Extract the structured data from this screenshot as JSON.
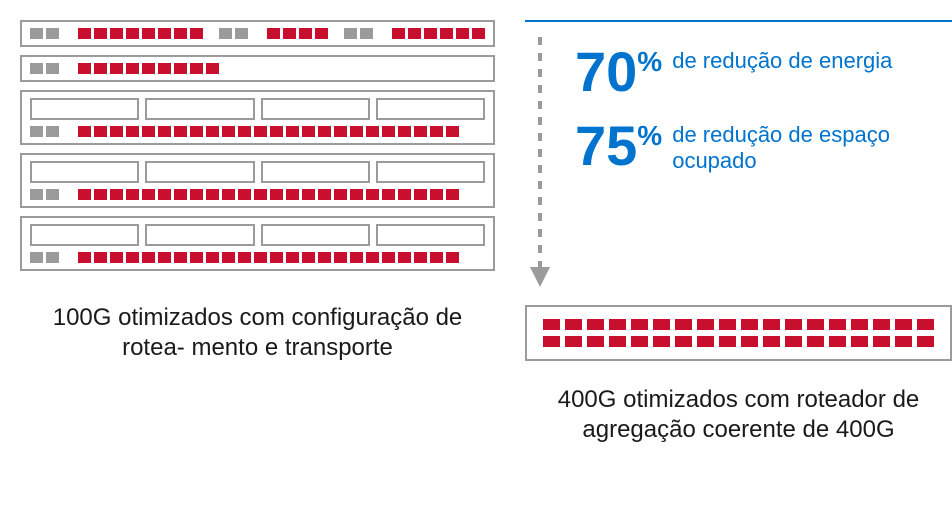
{
  "colors": {
    "blue": "#0073cf",
    "red": "#c8102e",
    "grey": "#9b9b9b",
    "text": "#1a1a1a",
    "bg": "#ffffff"
  },
  "left": {
    "caption": "100G otimizados com configuração de rotea-\nmento e transporte",
    "chassis": [
      {
        "rows": [
          [
            "g",
            "g",
            "e",
            "r",
            "r",
            "r",
            "r",
            "r",
            "r",
            "r",
            "r",
            "gap",
            "g",
            "g",
            "e",
            "r",
            "r",
            "r",
            "r",
            "gap",
            "g",
            "g",
            "e",
            "r",
            "r",
            "r",
            "r",
            "r",
            "r"
          ]
        ]
      },
      {
        "rows": [
          [
            "g",
            "g",
            "e",
            "r",
            "r",
            "r",
            "r",
            "r",
            "r",
            "r",
            "r",
            "r"
          ]
        ]
      },
      {
        "slots": 4,
        "rows": [
          [
            "g",
            "g",
            "e",
            "r",
            "r",
            "r",
            "r",
            "r",
            "r",
            "r",
            "r",
            "r",
            "r",
            "r",
            "r",
            "r",
            "r",
            "r",
            "r",
            "r",
            "r",
            "r",
            "r",
            "r",
            "r",
            "r",
            "r"
          ]
        ]
      },
      {
        "slots": 4,
        "rows": [
          [
            "g",
            "g",
            "e",
            "r",
            "r",
            "r",
            "r",
            "r",
            "r",
            "r",
            "r",
            "r",
            "r",
            "r",
            "r",
            "r",
            "r",
            "r",
            "r",
            "r",
            "r",
            "r",
            "r",
            "r",
            "r",
            "r",
            "r"
          ]
        ]
      },
      {
        "slots": 4,
        "rows": [
          [
            "g",
            "g",
            "e",
            "r",
            "r",
            "r",
            "r",
            "r",
            "r",
            "r",
            "r",
            "r",
            "r",
            "r",
            "r",
            "r",
            "r",
            "r",
            "r",
            "r",
            "r",
            "r",
            "r",
            "r",
            "r",
            "r",
            "r"
          ]
        ]
      }
    ]
  },
  "right": {
    "stats": [
      {
        "value": "70",
        "pct": "%",
        "label": "de redução de energia"
      },
      {
        "value": "75",
        "pct": "%",
        "label": "de redução de espaço ocupado"
      }
    ],
    "chassis": {
      "rows": 2,
      "ports_per_row": 18
    },
    "caption": "400G otimizados com roteador de agregação coerente de 400G",
    "arrow": {
      "length": 235,
      "color": "#9b9b9b",
      "dash": "8,8",
      "stroke_width": 4
    }
  }
}
